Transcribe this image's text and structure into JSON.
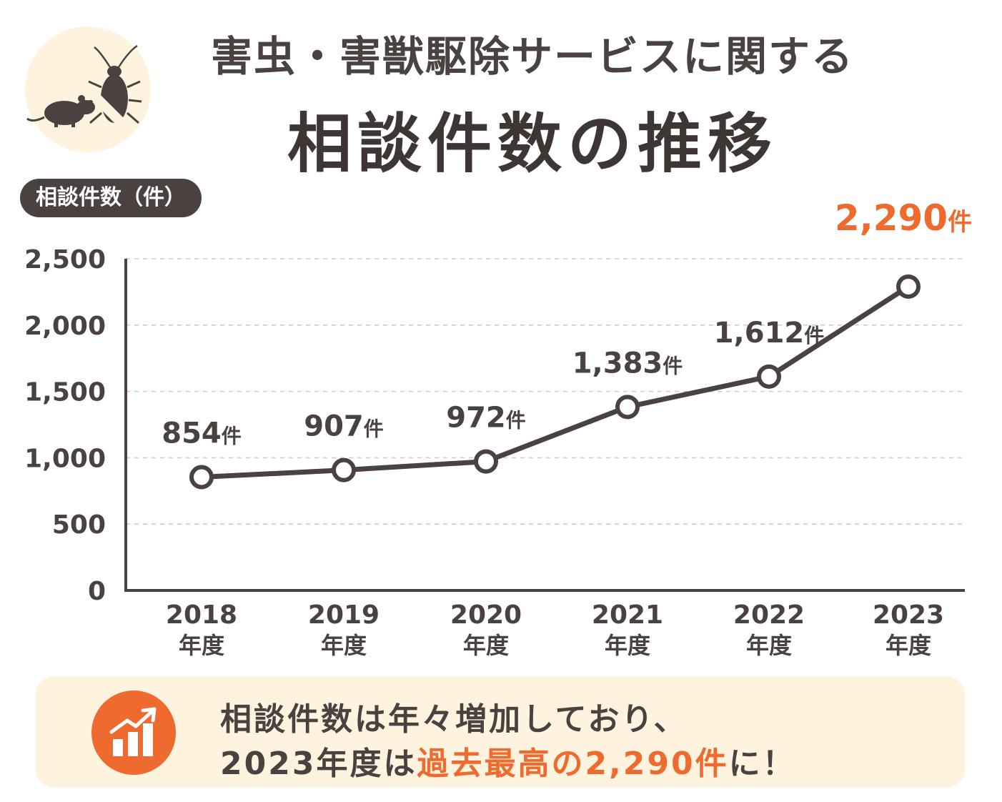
{
  "header": {
    "title_line1": "害虫・害獣駆除サービスに関する",
    "title_line2": "相談件数の推移",
    "logo_icon": "no-pests-icon"
  },
  "colors": {
    "text": "#4a4240",
    "accent": "#ef6a2f",
    "callout_bg": "#fdf3de",
    "grid": "#cfcac8"
  },
  "chart_data": {
    "type": "line",
    "ylabel": "相談件数（件）",
    "xlabel": "",
    "categories": [
      "2018",
      "2019",
      "2020",
      "2021",
      "2022",
      "2023"
    ],
    "category_suffix": "年度",
    "ylim": [
      0,
      2500
    ],
    "yticks": [
      "0",
      "500",
      "1,000",
      "1,500",
      "2,000",
      "2,500"
    ],
    "grid": true,
    "series": [
      {
        "values": [
          854,
          907,
          972,
          1383,
          1612,
          2290
        ],
        "labels": [
          "854",
          "907",
          "972",
          "1,383",
          "1,612",
          "2,290"
        ],
        "unit": "件"
      }
    ],
    "highlight_index": 5
  },
  "callout": {
    "icon": "growth-chart-icon",
    "line1": "相談件数は年々増加しており、",
    "line2_prefix": "2023年度は",
    "line2_highlight": "過去最高の2,290件",
    "line2_suffix": "に！"
  }
}
